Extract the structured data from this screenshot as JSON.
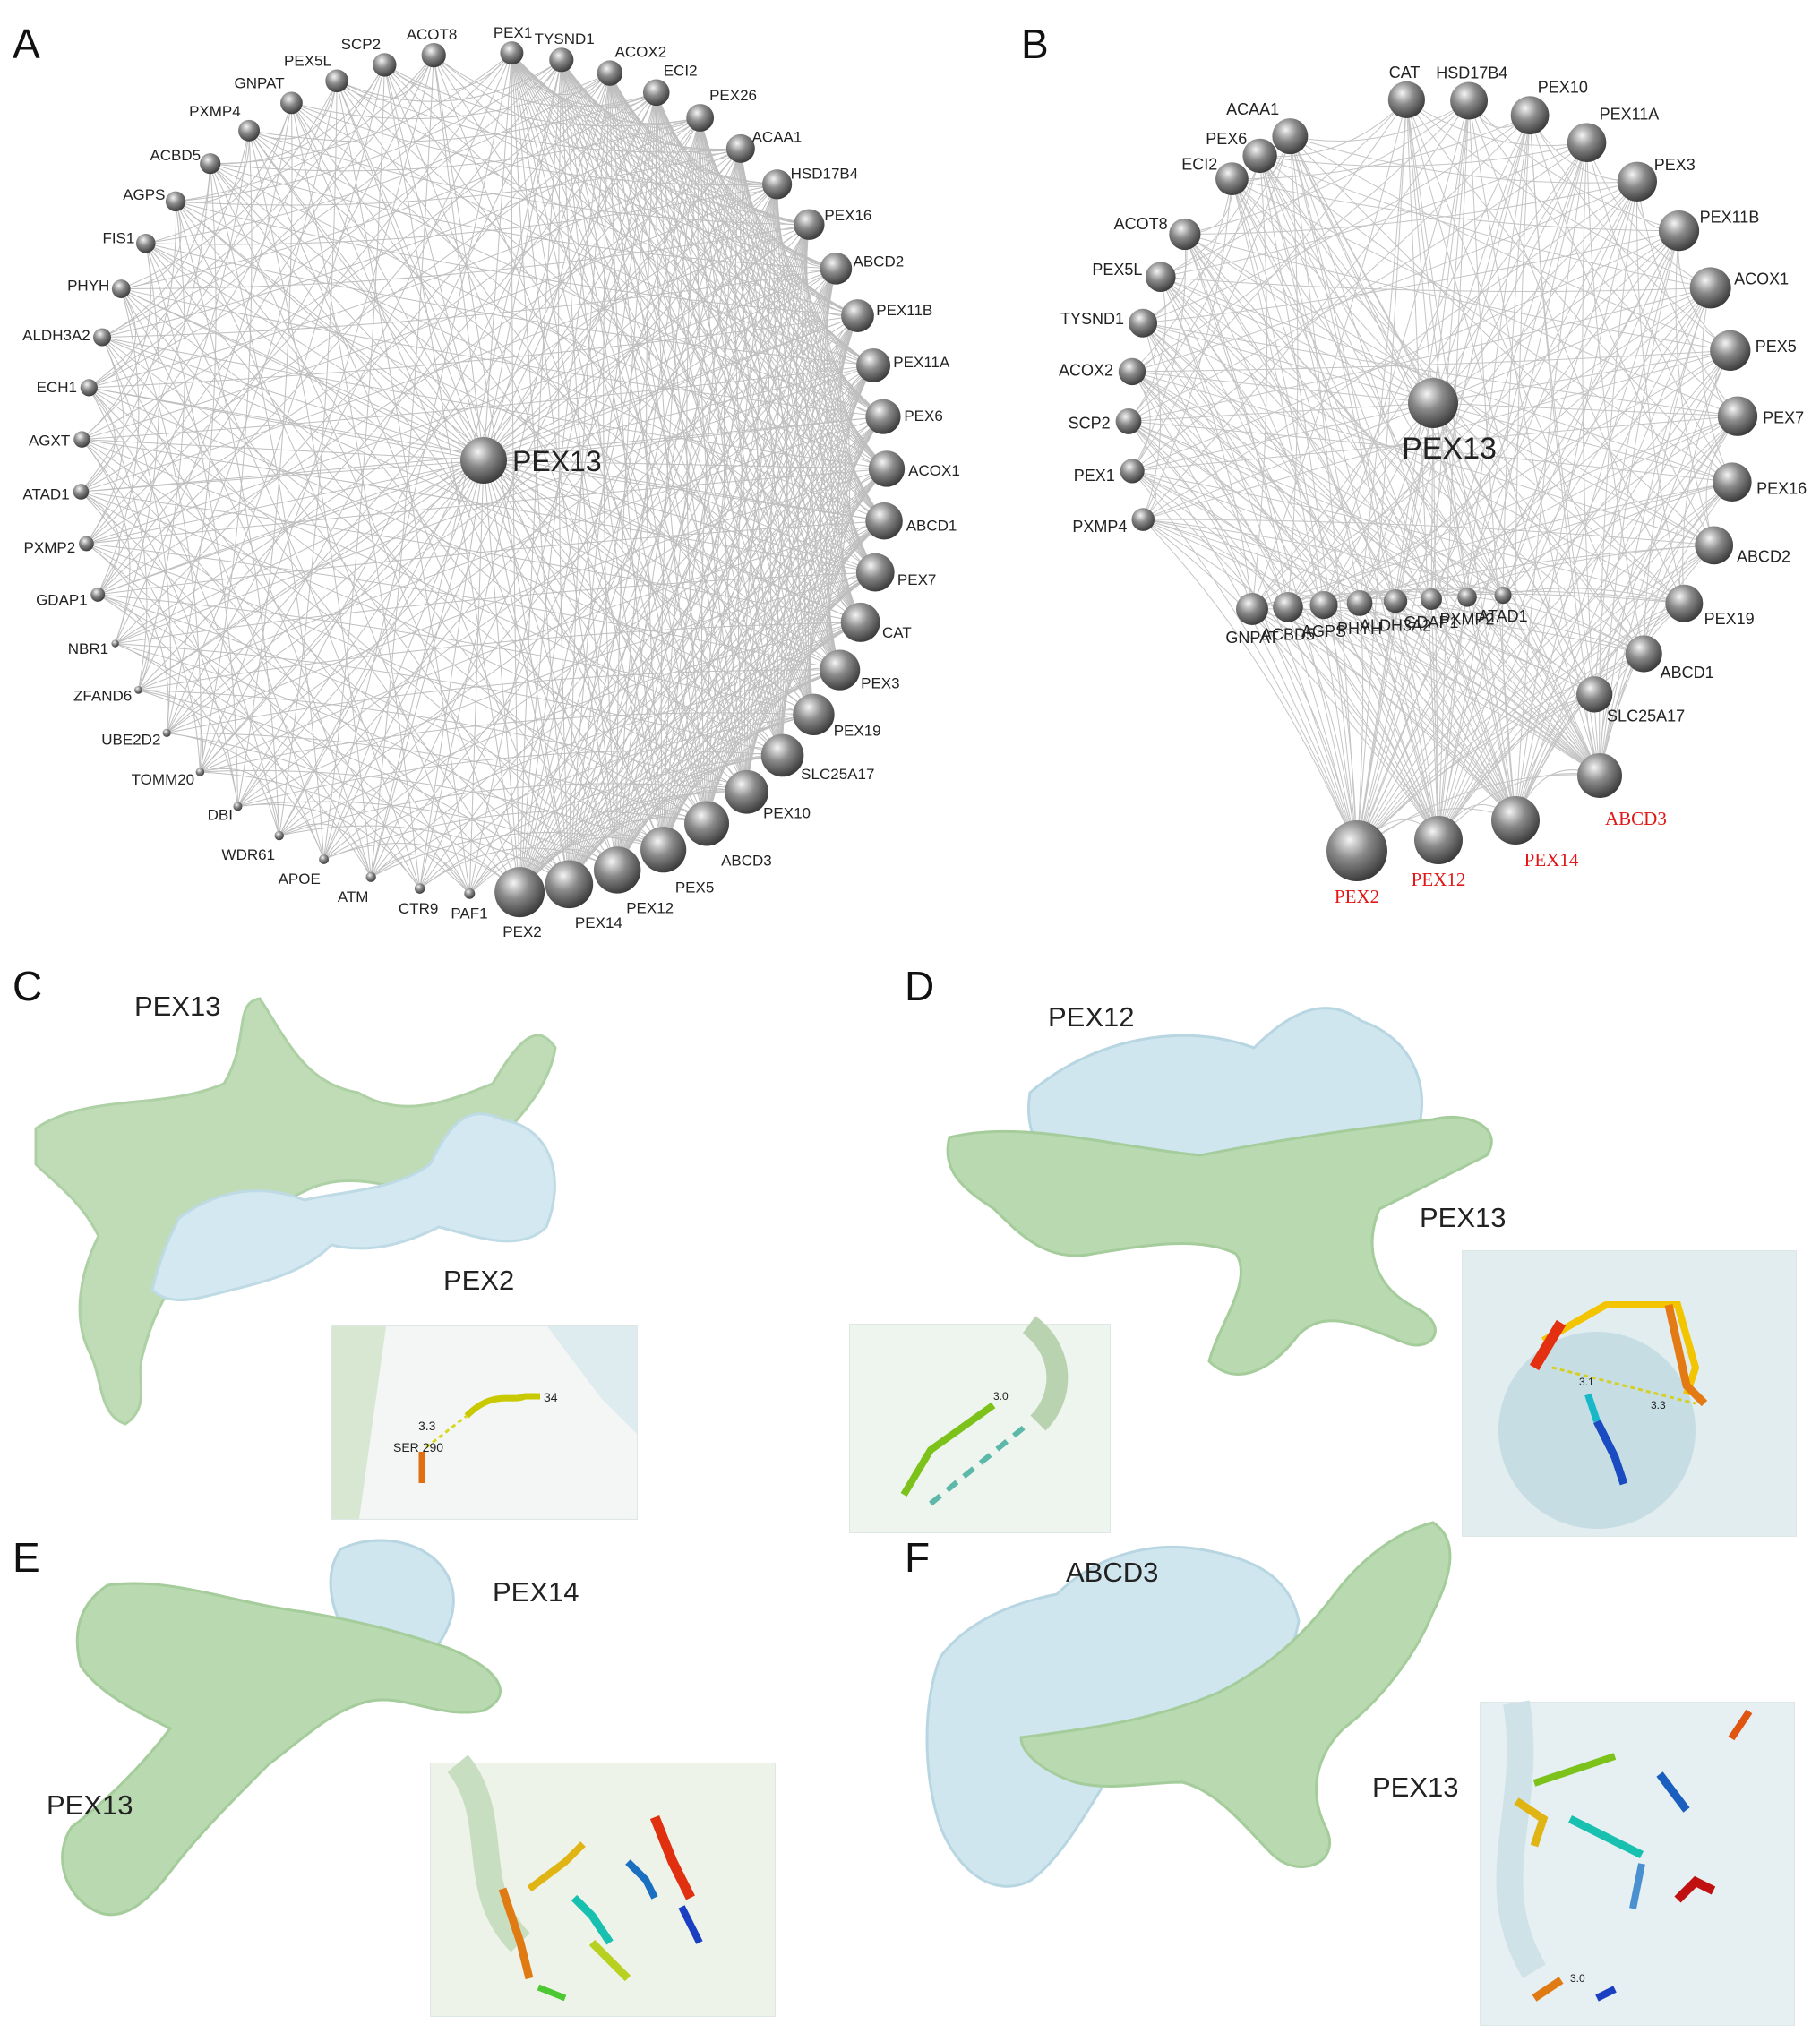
{
  "panels": {
    "A": {
      "letter": "A",
      "center": "PEX13",
      "nodes": [
        "PEX1",
        "TYSND1",
        "ACOX2",
        "ECI2",
        "PEX26",
        "ACAA1",
        "HSD17B4",
        "PEX16",
        "ABCD2",
        "PEX11B",
        "PEX11A",
        "PEX6",
        "ACOX1",
        "ABCD1",
        "PEX7",
        "CAT",
        "PEX3",
        "PEX19",
        "SLC25A17",
        "PEX10",
        "ABCD3",
        "PEX5",
        "PEX12",
        "PEX14",
        "PEX2",
        "PAF1",
        "CTR9",
        "ATM",
        "APOE",
        "WDR61",
        "DBI",
        "TOMM20",
        "UBE2D2",
        "ZFAND6",
        "NBR1",
        "GDAP1",
        "PXMP2",
        "ATAD1",
        "AGXT",
        "ECH1",
        "ALDH3A2",
        "PHYH",
        "FIS1",
        "AGPS",
        "ACBD5",
        "PXMP4",
        "GNPAT",
        "PEX5L",
        "SCP2",
        "ACOT8"
      ]
    },
    "B": {
      "letter": "B",
      "center": "PEX13",
      "ring_nodes": [
        "CAT",
        "HSD17B4",
        "PEX10",
        "PEX11A",
        "PEX3",
        "PEX11B",
        "ACOX1",
        "PEX5",
        "PEX7",
        "PEX16",
        "ABCD2",
        "PEX19",
        "ABCD1",
        "SLC25A17",
        "ACAA1",
        "PEX6",
        "ECI2",
        "ACOT8",
        "PEX5L",
        "TYSND1",
        "ACOX2",
        "SCP2",
        "PEX1",
        "PXMP4"
      ],
      "inner_nodes": [
        "GNPAT",
        "ACBD5",
        "AGPS",
        "PHYH",
        "ALDH3A2",
        "GDAP1",
        "PXMP2",
        "ATAD1"
      ],
      "highlighted": [
        "ABCD3",
        "PEX14",
        "PEX12",
        "PEX2"
      ],
      "highlight_color": "#e01818"
    },
    "C": {
      "letter": "C",
      "protein_a": "PEX13",
      "protein_b": "PEX2",
      "inset_labels": [
        "3.3",
        "SER 290",
        "34"
      ]
    },
    "D": {
      "letter": "D",
      "protein_a": "PEX12",
      "protein_b": "PEX13",
      "inset_labels": [
        "3.0",
        "3.1",
        "3.3"
      ]
    },
    "E": {
      "letter": "E",
      "protein_a": "PEX14",
      "protein_b": "PEX13"
    },
    "F": {
      "letter": "F",
      "protein_a": "ABCD3",
      "protein_b": "PEX13",
      "inset_labels": [
        "3.0"
      ]
    }
  },
  "colors": {
    "node": "#7a7a7a",
    "edge": "#8a8a8a",
    "surface_green": "#b9d9b0",
    "surface_blue": "#cfe6ef"
  }
}
